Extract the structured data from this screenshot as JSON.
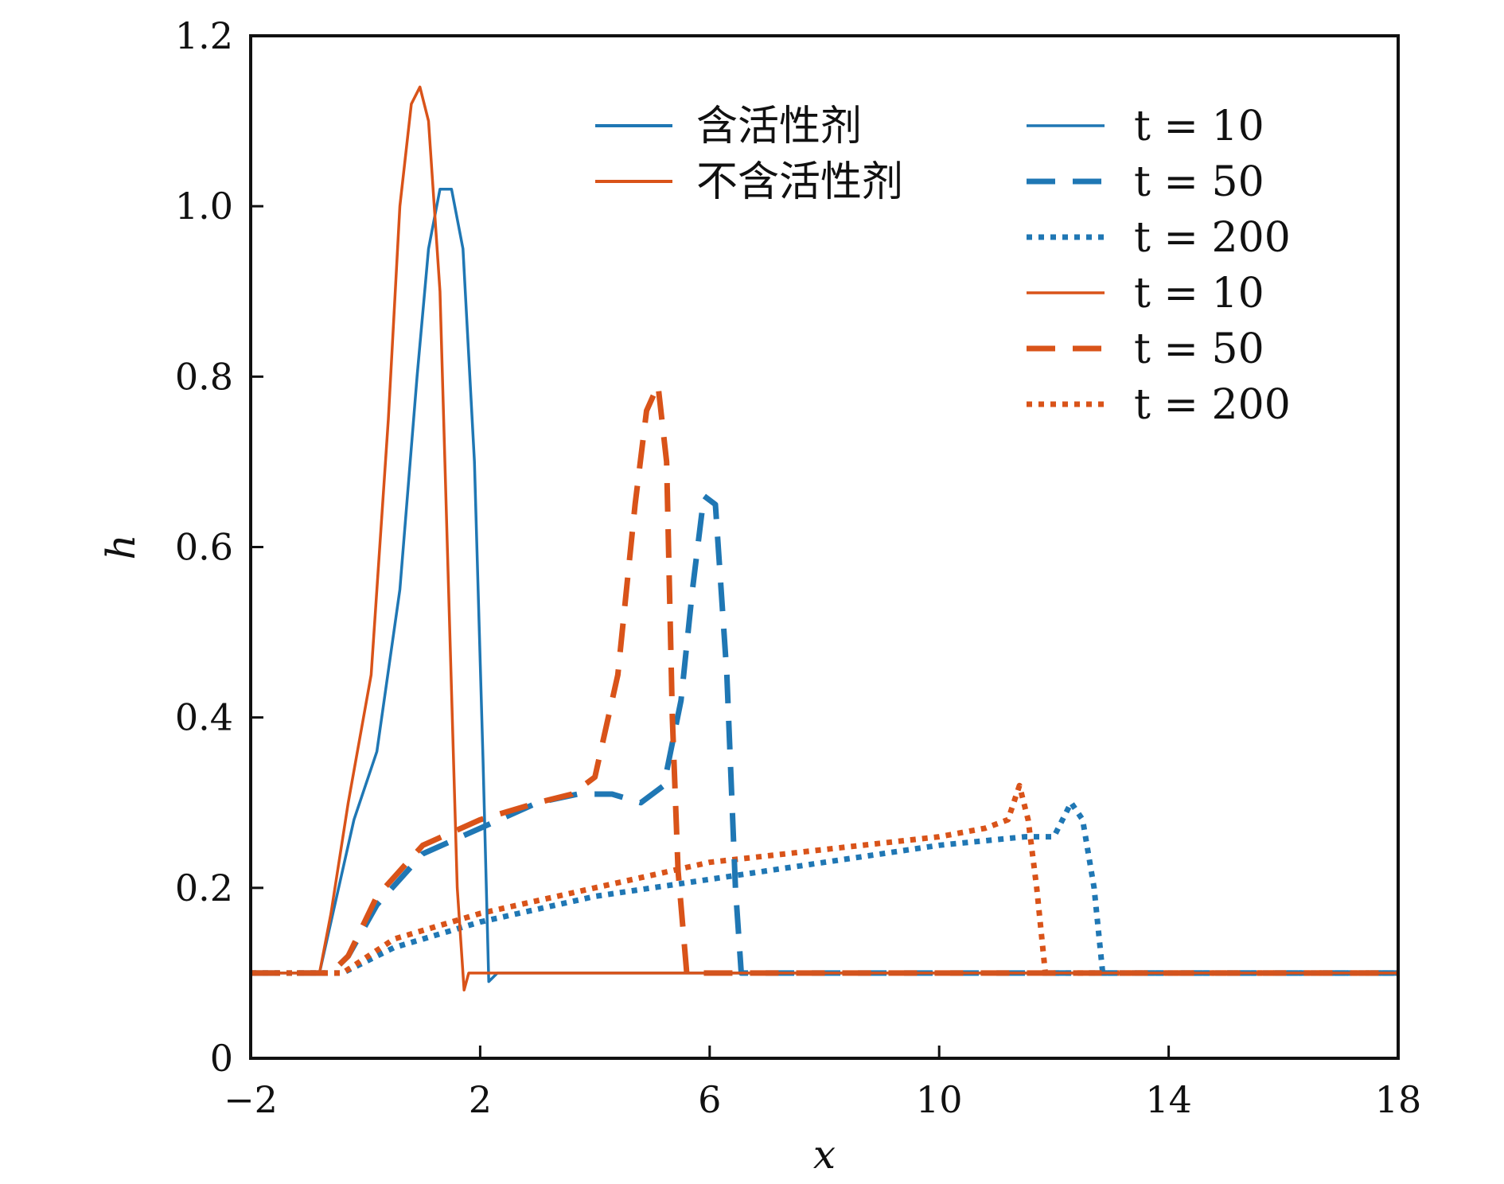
{
  "chart_data": {
    "type": "line",
    "xlabel": "x",
    "ylabel": "h",
    "xlim": [
      -2,
      18
    ],
    "ylim": [
      0,
      1.2
    ],
    "xticks": [
      "−2",
      "2",
      "6",
      "10",
      "14",
      "18"
    ],
    "xtick_values": [
      -2,
      2,
      6,
      10,
      14,
      18
    ],
    "yticks": [
      "0",
      "0.2",
      "0.4",
      "0.6",
      "0.8",
      "1.0",
      "1.2"
    ],
    "ytick_values": [
      0,
      0.2,
      0.4,
      0.6,
      0.8,
      1.0,
      1.2
    ],
    "legend_groups": [
      {
        "label": "含活性剂",
        "color": "#1f77b4"
      },
      {
        "label": "不含活性剂",
        "color": "#d95319"
      }
    ],
    "legend_times": [
      "t = 10",
      "t = 50",
      "t = 200",
      "t = 10",
      "t = 50",
      "t = 200"
    ],
    "series": [
      {
        "group": "含活性剂",
        "time": "t = 10",
        "color": "#1f77b4",
        "style": "solid",
        "x": [
          -2,
          -0.8,
          -0.6,
          -0.2,
          0.2,
          0.6,
          0.9,
          1.1,
          1.3,
          1.5,
          1.7,
          1.9,
          2.05,
          2.15,
          2.3,
          18
        ],
        "y": [
          0.1,
          0.1,
          0.16,
          0.28,
          0.36,
          0.55,
          0.8,
          0.95,
          1.02,
          1.02,
          0.95,
          0.7,
          0.35,
          0.09,
          0.1,
          0.1
        ]
      },
      {
        "group": "含活性剂",
        "time": "t = 50",
        "color": "#1f77b4",
        "style": "dashed",
        "x": [
          -2,
          -0.6,
          -0.3,
          0.2,
          1.0,
          2.0,
          3.0,
          3.7,
          4.3,
          4.8,
          5.2,
          5.5,
          5.7,
          5.9,
          6.1,
          6.3,
          6.45,
          6.55,
          6.7,
          18
        ],
        "y": [
          0.1,
          0.1,
          0.12,
          0.18,
          0.24,
          0.27,
          0.3,
          0.31,
          0.31,
          0.3,
          0.32,
          0.42,
          0.55,
          0.66,
          0.65,
          0.45,
          0.2,
          0.1,
          0.1,
          0.1
        ]
      },
      {
        "group": "含活性剂",
        "time": "t = 200",
        "color": "#1f77b4",
        "style": "dotted",
        "x": [
          -2,
          -0.4,
          0.5,
          2.0,
          4.0,
          6.0,
          8.0,
          10.0,
          11.5,
          12.0,
          12.3,
          12.5,
          12.7,
          12.85,
          13.0,
          18
        ],
        "y": [
          0.1,
          0.1,
          0.13,
          0.16,
          0.19,
          0.21,
          0.23,
          0.25,
          0.26,
          0.26,
          0.3,
          0.28,
          0.2,
          0.1,
          0.1,
          0.1
        ]
      },
      {
        "group": "不含活性剂",
        "time": "t = 10",
        "color": "#d95319",
        "style": "solid",
        "x": [
          -2,
          -0.8,
          -0.6,
          -0.3,
          0.1,
          0.4,
          0.6,
          0.8,
          0.95,
          1.1,
          1.3,
          1.45,
          1.6,
          1.72,
          1.8,
          2.0,
          18
        ],
        "y": [
          0.1,
          0.1,
          0.17,
          0.3,
          0.45,
          0.75,
          1.0,
          1.12,
          1.14,
          1.1,
          0.9,
          0.55,
          0.2,
          0.08,
          0.1,
          0.1,
          0.1
        ]
      },
      {
        "group": "不含活性剂",
        "time": "t = 50",
        "color": "#d95319",
        "style": "dashed",
        "x": [
          -2,
          -0.6,
          -0.3,
          0.2,
          1.0,
          2.0,
          3.0,
          3.6,
          4.0,
          4.4,
          4.7,
          4.9,
          5.1,
          5.25,
          5.35,
          5.45,
          5.6,
          5.8,
          18
        ],
        "y": [
          0.1,
          0.1,
          0.12,
          0.19,
          0.25,
          0.28,
          0.3,
          0.31,
          0.33,
          0.45,
          0.65,
          0.76,
          0.79,
          0.7,
          0.4,
          0.22,
          0.1,
          0.1,
          0.1
        ]
      },
      {
        "group": "不含活性剂",
        "time": "t = 200",
        "color": "#d95319",
        "style": "dotted",
        "x": [
          -2,
          -0.4,
          0.5,
          2.0,
          4.0,
          6.0,
          8.0,
          10.0,
          10.8,
          11.2,
          11.4,
          11.55,
          11.7,
          11.85,
          12.0,
          18
        ],
        "y": [
          0.1,
          0.1,
          0.14,
          0.17,
          0.2,
          0.23,
          0.245,
          0.26,
          0.27,
          0.28,
          0.32,
          0.28,
          0.2,
          0.1,
          0.1,
          0.1
        ]
      }
    ]
  }
}
